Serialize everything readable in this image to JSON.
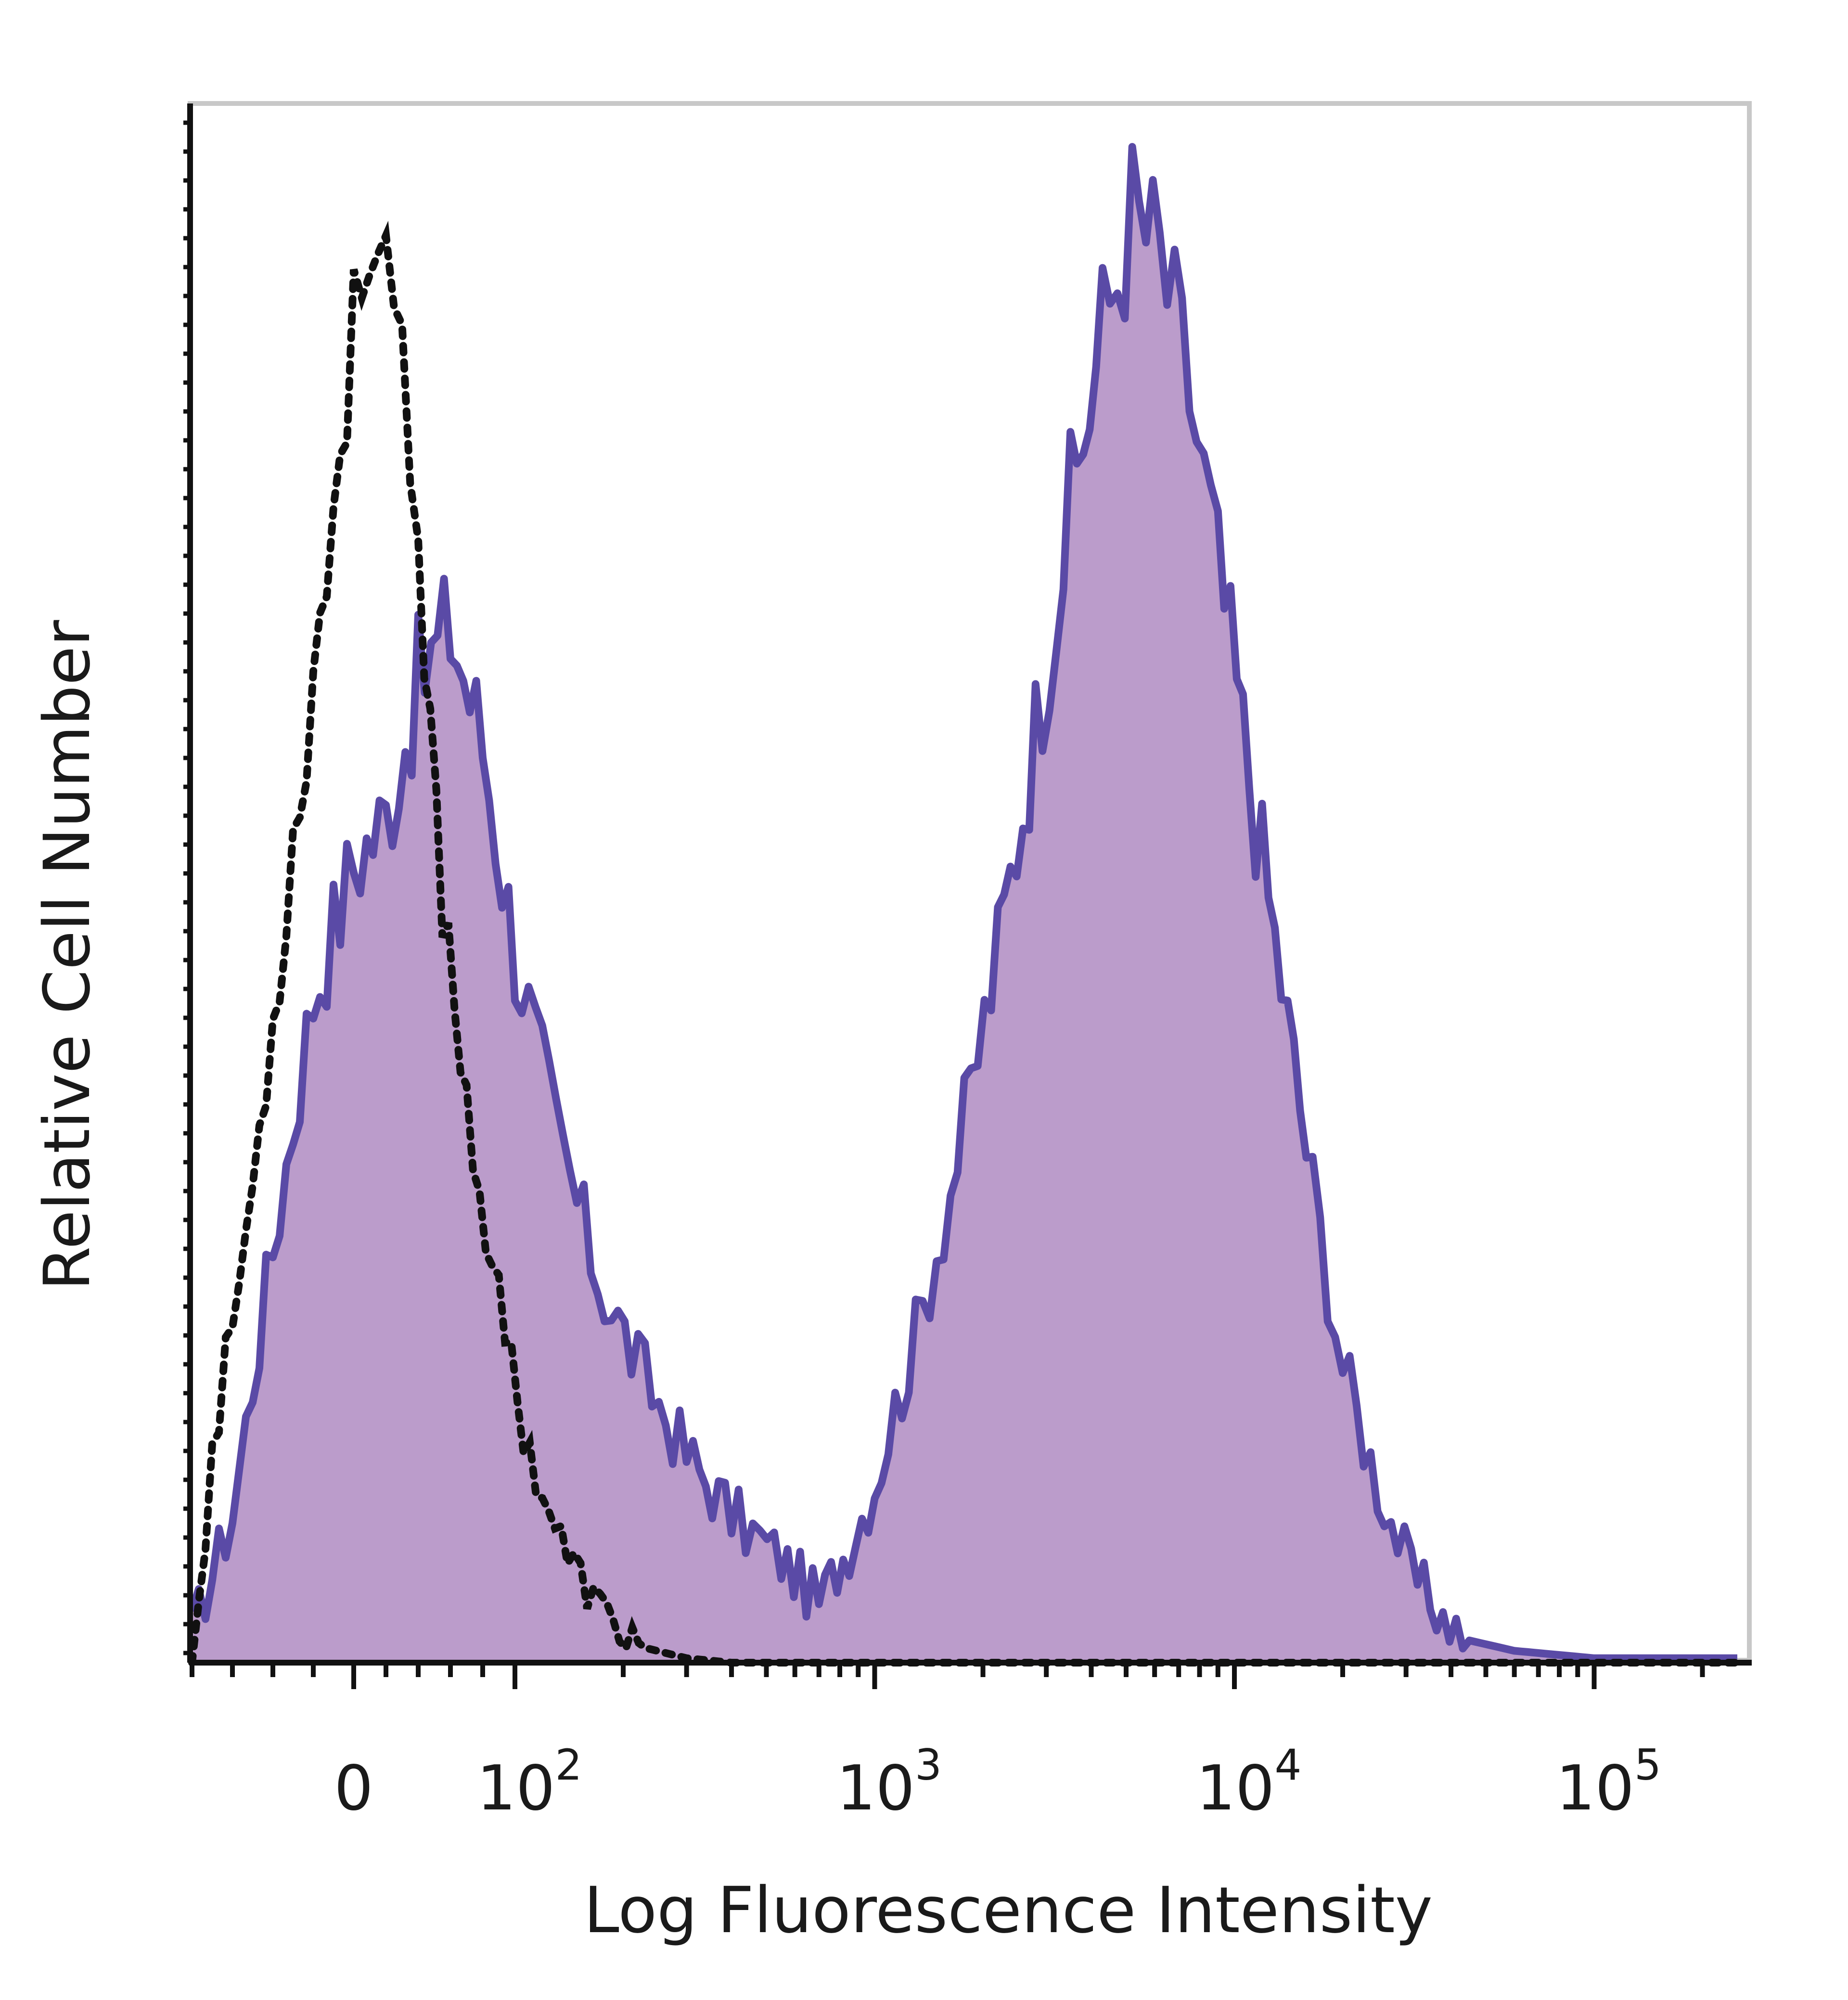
{
  "chart_data": {
    "type": "area",
    "title": "",
    "xlabel": "Log Fluorescence Intensity",
    "ylabel": "Relative Cell Number",
    "x_scale": "biexponential (log above ~10^2)",
    "xlim": [
      -80,
      250000
    ],
    "ylim": [
      0,
      100
    ],
    "grid": false,
    "legend": "none",
    "x_ticks": [
      {
        "value": 0,
        "base": "0",
        "exp": ""
      },
      {
        "value": 100,
        "base": "10",
        "exp": "2"
      },
      {
        "value": 1000,
        "base": "10",
        "exp": "3"
      },
      {
        "value": 10000,
        "base": "10",
        "exp": "4"
      },
      {
        "value": 100000,
        "base": "10",
        "exp": "5"
      }
    ],
    "colors": {
      "stained_line": "#5a4aa6",
      "stained_fill": "#bb9ccb",
      "control_line": "#111111",
      "frame": "#c8c8c8",
      "axis": "#111111"
    },
    "series": [
      {
        "style": "filled-solid",
        "x": [
          -80,
          -60,
          -40,
          -20,
          0,
          20,
          40,
          60,
          80,
          100,
          130,
          170,
          220,
          300,
          400,
          550,
          700,
          850,
          1000,
          1300,
          1700,
          2200,
          2800,
          3500,
          4300,
          5200,
          6200,
          7500,
          9000,
          11000,
          13500,
          16500,
          20000,
          25000,
          31000,
          38000,
          45000,
          60000,
          100000,
          250000
        ],
        "y": [
          2,
          10,
          28,
          45,
          54,
          57,
          66,
          70,
          62,
          48,
          36,
          26,
          20,
          14,
          10,
          7,
          4,
          8,
          12,
          22,
          34,
          48,
          63,
          78,
          90,
          98,
          95,
          86,
          74,
          60,
          46,
          32,
          20,
          12,
          6,
          3,
          1.5,
          0.8,
          0.3,
          0.3
        ]
      },
      {
        "style": "dotted",
        "x": [
          -80,
          -70,
          -50,
          -30,
          -10,
          0,
          10,
          20,
          30,
          40,
          55,
          70,
          90,
          110,
          140,
          180,
          230,
          300,
          400,
          700,
          1000,
          5000,
          20000,
          100000,
          250000
        ],
        "y": [
          0,
          14,
          32,
          55,
          78,
          90,
          98,
          96,
          86,
          72,
          52,
          38,
          24,
          14,
          7,
          3,
          1,
          0.3,
          0,
          0,
          0,
          0,
          0,
          0,
          0
        ]
      }
    ]
  }
}
